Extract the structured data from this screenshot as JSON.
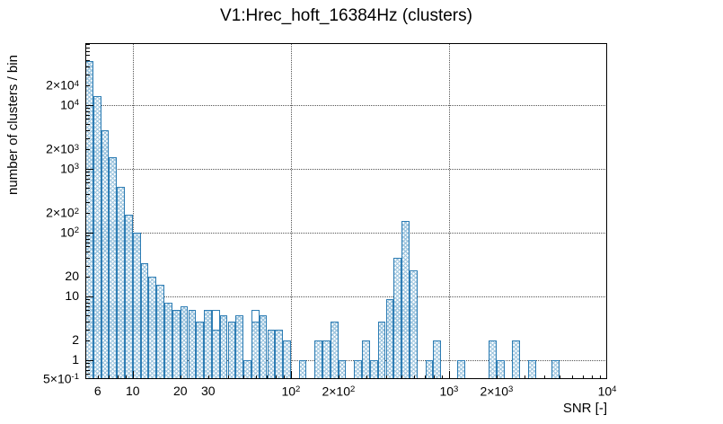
{
  "title": "V1:Hrec_hoft_16384Hz (clusters)",
  "axes": {
    "x_title": "SNR [-]",
    "y_title": "number of clusters / bin",
    "x_scale": "log",
    "y_scale": "log",
    "x_range": [
      5.01,
      10000
    ],
    "y_range": [
      0.5,
      92600
    ],
    "x_grid_values": [
      10,
      100,
      1000,
      10000
    ],
    "y_grid_values": [
      1,
      10,
      100,
      1000,
      10000
    ],
    "x_tick_labels": [
      {
        "value": 6,
        "main": "6",
        "sup": ""
      },
      {
        "value": 10,
        "main": "10",
        "sup": ""
      },
      {
        "value": 20,
        "main": "20",
        "sup": ""
      },
      {
        "value": 30,
        "main": "30",
        "sup": ""
      },
      {
        "value": 100,
        "main": "10",
        "sup": "2"
      },
      {
        "value": 200,
        "main": "2×10",
        "sup": "2"
      },
      {
        "value": 1000,
        "main": "10",
        "sup": "3"
      },
      {
        "value": 2000,
        "main": "2×10",
        "sup": "3"
      },
      {
        "value": 10000,
        "main": "10",
        "sup": "4"
      }
    ],
    "y_tick_labels": [
      {
        "value": 0.5,
        "main": "5×10",
        "sup": "-1"
      },
      {
        "value": 1,
        "main": "1",
        "sup": ""
      },
      {
        "value": 2,
        "main": "2",
        "sup": ""
      },
      {
        "value": 10,
        "main": "10",
        "sup": ""
      },
      {
        "value": 20,
        "main": "20",
        "sup": ""
      },
      {
        "value": 100,
        "main": "10",
        "sup": "2"
      },
      {
        "value": 200,
        "main": "2×10",
        "sup": "2"
      },
      {
        "value": 1000,
        "main": "10",
        "sup": "3"
      },
      {
        "value": 2000,
        "main": "2×10",
        "sup": "3"
      },
      {
        "value": 10000,
        "main": "10",
        "sup": "4"
      },
      {
        "value": 20000,
        "main": "2×10",
        "sup": "4"
      }
    ]
  },
  "style": {
    "line_color": "#2e7db4",
    "hatch_color": "#9cc4de",
    "grid_color": "#555555",
    "frame_color": "#000000"
  },
  "chart_data": {
    "type": "bar",
    "title": "V1:Hrec_hoft_16384Hz (clusters)",
    "xlabel": "SNR [-]",
    "ylabel": "number of clusters / bin",
    "x_scale": "log",
    "y_scale": "log",
    "xlim": [
      5.01,
      10000
    ],
    "ylim": [
      0.5,
      92600
    ],
    "grid": true,
    "legend": false,
    "binning": {
      "n_bins": 66,
      "log10_start": 0.7,
      "log10_bin_width": 0.05,
      "note": "bin k spans SNR 10^(0.70+0.05k) .. 10^(0.70+0.05(k+1))"
    },
    "values": [
      48000,
      13500,
      4000,
      1500,
      520,
      190,
      100,
      33,
      20,
      15,
      8,
      6,
      7,
      6,
      4,
      6,
      3,
      5,
      4,
      5,
      1,
      4,
      5,
      3,
      3,
      2,
      0,
      1,
      0,
      2,
      2,
      4,
      1,
      0,
      1,
      2,
      1,
      4,
      9,
      40,
      150,
      25,
      0,
      1,
      2,
      0,
      0,
      1,
      0,
      0,
      0,
      2,
      1,
      0,
      2,
      0,
      1,
      0,
      0,
      1,
      0,
      0,
      0,
      0,
      0,
      0
    ],
    "outline_series_overrides": [
      {
        "bin": 16,
        "value": 6
      },
      {
        "bin": 21,
        "value": 6
      }
    ],
    "features": {
      "first_bin_peak": {
        "snr": 5.2,
        "count": 48000
      },
      "secondary_peak": {
        "snr": 530,
        "count": 150
      }
    }
  }
}
